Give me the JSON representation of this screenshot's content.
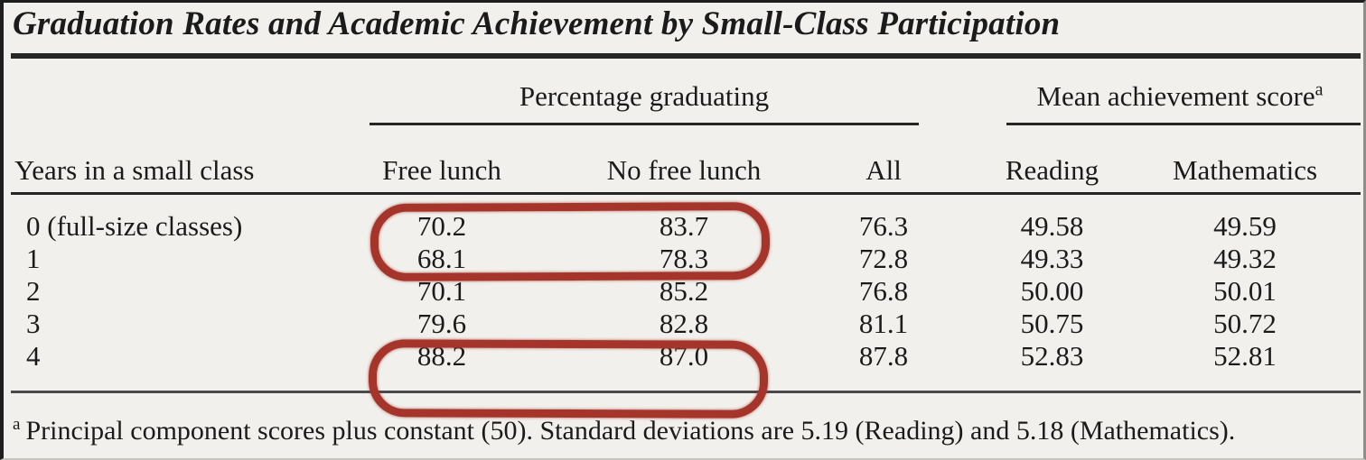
{
  "page": {
    "background": "#f1f0ec",
    "text_color": "#1b1b1b",
    "rule_color": "#262626",
    "annotation_color": "#a5352b"
  },
  "title": "Graduation Rates and Academic Achievement by Small-Class Participation",
  "table": {
    "row_header": "Years in a small class",
    "col_groups": [
      {
        "label": "Percentage graduating",
        "columns": [
          "Free lunch",
          "No free lunch",
          "All"
        ]
      },
      {
        "label": "Mean achievement score",
        "superscript": "a",
        "columns": [
          "Reading",
          "Mathematics"
        ]
      }
    ],
    "rows": [
      {
        "label": "0 (full-size classes)",
        "values": [
          "70.2",
          "83.7",
          "76.3",
          "49.58",
          "49.59"
        ]
      },
      {
        "label": "1",
        "values": [
          "68.1",
          "78.3",
          "72.8",
          "49.33",
          "49.32"
        ]
      },
      {
        "label": "2",
        "values": [
          "70.1",
          "85.2",
          "76.8",
          "50.00",
          "50.01"
        ]
      },
      {
        "label": "3",
        "values": [
          "79.6",
          "82.8",
          "81.1",
          "50.75",
          "50.72"
        ]
      },
      {
        "label": "4",
        "values": [
          "88.2",
          "87.0",
          "87.8",
          "52.83",
          "52.81"
        ]
      }
    ]
  },
  "annotations": [
    {
      "name": "circle-row-0",
      "row_index": 0,
      "circled_values": [
        "70.2",
        "83.7"
      ],
      "style": "hand-drawn red oval"
    },
    {
      "name": "circle-row-4",
      "row_index": 4,
      "circled_values": [
        "88.2",
        "87.0"
      ],
      "style": "hand-drawn red oval"
    }
  ],
  "footnote": {
    "marker": "a",
    "text": "Principal component scores plus constant (50). Standard deviations are 5.19 (Reading) and 5.18 (Mathematics)."
  }
}
